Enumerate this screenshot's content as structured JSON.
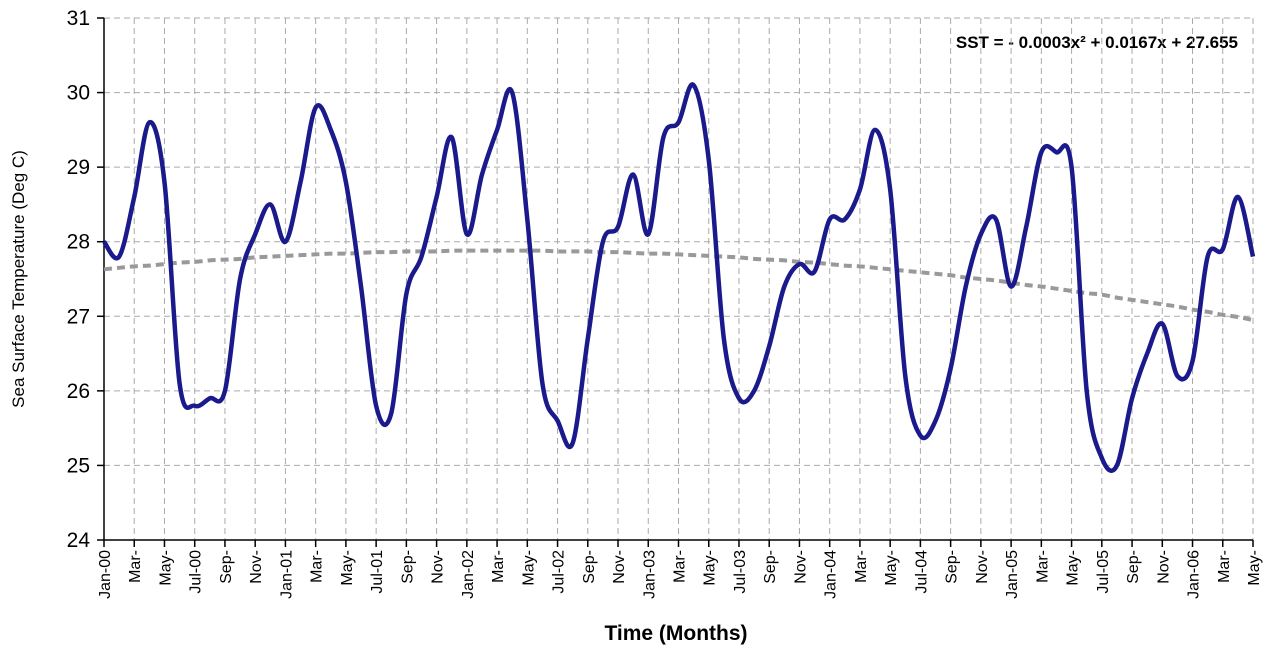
{
  "chart_data": {
    "type": "line",
    "annotation": "SST = - 0.0003x² + 0.0167x + 27.655",
    "x_label": "Time (Months)",
    "y_label": "Sea Surface Temperature (Deg C)",
    "categories": [
      "Jan-00",
      null,
      "Mar-",
      null,
      "May-",
      null,
      "Jul-00",
      null,
      "Sep-",
      null,
      "Nov-",
      null,
      "Jan-01",
      null,
      "Mar-",
      null,
      "May-",
      null,
      "Jul-01",
      null,
      "Sep-",
      null,
      "Nov-",
      null,
      "Jan-02",
      null,
      "Mar-",
      null,
      "May-",
      null,
      "Jul-02",
      null,
      "Sep-",
      null,
      "Nov-",
      null,
      "Jan-03",
      null,
      "Mar-",
      null,
      "May-",
      null,
      "Jul-03",
      null,
      "Sep-",
      null,
      "Nov-",
      null,
      "Jan-04",
      null,
      "Mar-",
      null,
      "May-",
      null,
      "Jul-04",
      null,
      "Sep-",
      null,
      "Nov-",
      null,
      "Jan-05",
      null,
      "Mar-",
      null,
      "May-",
      null,
      "Jul-05",
      null,
      "Sep-",
      null,
      "Nov-",
      null,
      "Jan-06",
      null,
      "Mar-",
      null,
      "May-"
    ],
    "series": [
      {
        "color": "#1a1a8c",
        "dashed": false,
        "values": [
          28.0,
          27.8,
          28.6,
          29.6,
          28.8,
          26.1,
          25.8,
          25.9,
          26.0,
          27.5,
          28.1,
          28.5,
          28.0,
          28.8,
          29.8,
          29.5,
          28.8,
          27.4,
          25.8,
          25.7,
          27.3,
          27.8,
          28.6,
          29.4,
          28.1,
          28.9,
          29.5,
          30.0,
          28.3,
          26.1,
          25.6,
          25.3,
          26.7,
          28.0,
          28.2,
          28.9,
          28.1,
          29.4,
          29.6,
          30.1,
          29.1,
          26.7,
          25.9,
          26.0,
          26.6,
          27.4,
          27.7,
          27.6,
          28.3,
          28.3,
          28.7,
          29.5,
          28.7,
          26.2,
          25.4,
          25.6,
          26.3,
          27.4,
          28.1,
          28.3,
          27.4,
          28.2,
          29.2,
          29.2,
          29.0,
          26.0,
          25.1,
          25.0,
          25.9,
          26.5,
          26.9,
          26.2,
          26.4,
          27.8,
          27.9,
          28.6,
          27.8
        ]
      },
      {
        "color": "#999999",
        "dashed": true,
        "values": [
          27.63,
          27.65,
          27.67,
          27.68,
          27.7,
          27.72,
          27.73,
          27.75,
          27.76,
          27.77,
          27.79,
          27.8,
          27.81,
          27.82,
          27.83,
          27.84,
          27.84,
          27.85,
          27.86,
          27.86,
          27.87,
          27.87,
          27.87,
          27.88,
          27.88,
          27.88,
          27.88,
          27.88,
          27.88,
          27.88,
          27.87,
          27.87,
          27.87,
          27.86,
          27.86,
          27.85,
          27.84,
          27.84,
          27.83,
          27.82,
          27.81,
          27.8,
          27.79,
          27.77,
          27.76,
          27.75,
          27.73,
          27.72,
          27.7,
          27.68,
          27.67,
          27.65,
          27.63,
          27.61,
          27.59,
          27.57,
          27.55,
          27.52,
          27.5,
          27.48,
          27.45,
          27.42,
          27.4,
          27.37,
          27.34,
          27.31,
          27.29,
          27.25,
          27.22,
          27.19,
          27.16,
          27.13,
          27.09,
          27.06,
          27.02,
          26.99,
          26.95
        ]
      }
    ],
    "ylim": [
      24,
      31
    ],
    "yticks": [
      24,
      25,
      26,
      27,
      28,
      29,
      30,
      31
    ],
    "grid": true
  }
}
